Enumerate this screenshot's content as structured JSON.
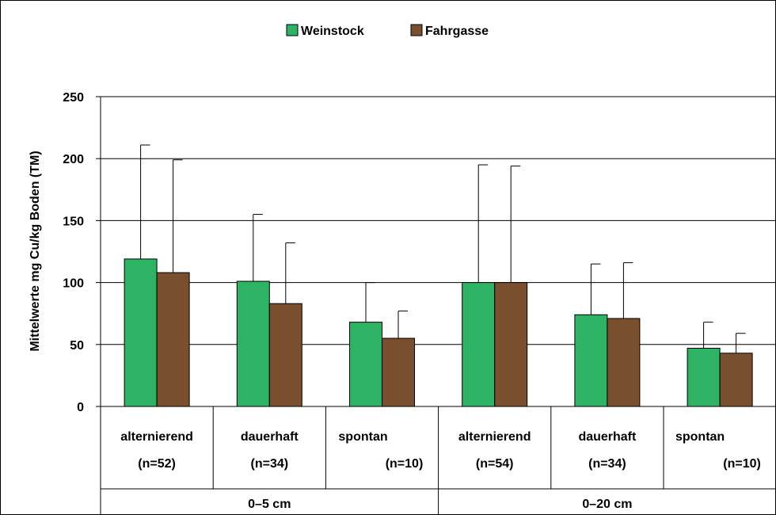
{
  "chart_data": {
    "type": "bar",
    "ylabel": "Mittelwerte mg Cu/kg Boden (TM)",
    "ylim": [
      0,
      250
    ],
    "yticks": [
      0,
      50,
      100,
      150,
      200,
      250
    ],
    "grid": true,
    "legend_position": "top-center",
    "categories": [
      {
        "label": "alternierend",
        "n": "(n=52)",
        "group": "0–5 cm"
      },
      {
        "label": "dauerhaft",
        "n": "(n=34)",
        "group": "0–5 cm"
      },
      {
        "label": "spontan",
        "n": "(n=10)",
        "group": "0–5 cm"
      },
      {
        "label": "alternierend",
        "n": "(n=54)",
        "group": "0–20 cm"
      },
      {
        "label": "dauerhaft",
        "n": "(n=34)",
        "group": "0–20 cm"
      },
      {
        "label": "spontan",
        "n": "(n=10)",
        "group": "0–20 cm"
      }
    ],
    "groups": [
      "0–5 cm",
      "0–20 cm"
    ],
    "series": [
      {
        "name": "Weinstock",
        "color": "#2eb364",
        "values": [
          119,
          101,
          68,
          100,
          74,
          47
        ],
        "error_upper": [
          211,
          155,
          100,
          195,
          115,
          68
        ]
      },
      {
        "name": "Fahrgasse",
        "color": "#7a4f2d",
        "values": [
          108,
          83,
          55,
          100,
          71,
          43
        ],
        "error_upper": [
          199,
          132,
          77,
          194,
          116,
          59
        ]
      }
    ]
  }
}
